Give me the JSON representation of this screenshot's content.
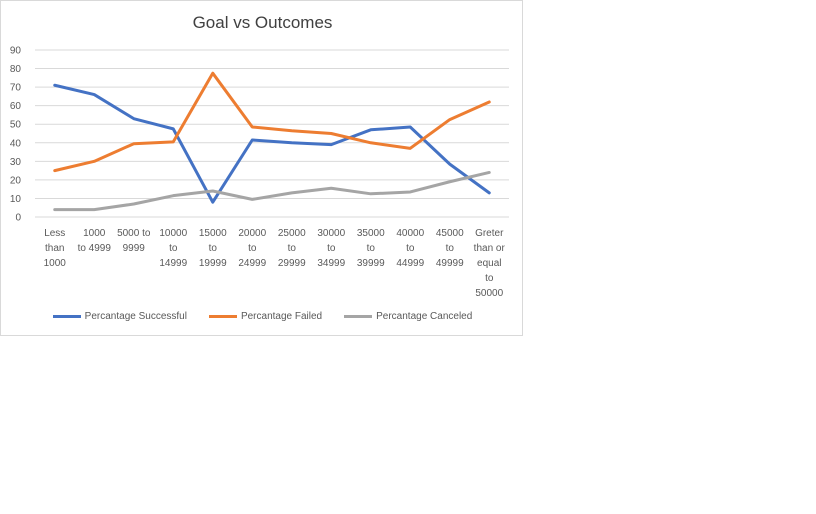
{
  "chart_data": {
    "type": "line",
    "title": "Goal vs Outcomes",
    "xlabel": "",
    "ylabel": "",
    "ylim": [
      0,
      90
    ],
    "yticks": [
      0,
      10,
      20,
      30,
      40,
      50,
      60,
      70,
      80,
      90
    ],
    "grid": true,
    "legend_position": "bottom",
    "categories": [
      "Less than 1000",
      "1000 to 4999",
      "5000 to 9999",
      "10000 to 14999",
      "15000 to 19999",
      "20000 to 24999",
      "25000 to 29999",
      "30000 to 34999",
      "35000 to 39999",
      "40000 to 44999",
      "45000 to 49999",
      "Greter than or equal to 50000"
    ],
    "category_lines": [
      [
        "Less",
        "than",
        "1000"
      ],
      [
        "1000",
        "to 4999"
      ],
      [
        "5000 to",
        "9999"
      ],
      [
        "10000",
        "to",
        "14999"
      ],
      [
        "15000",
        "to",
        "19999"
      ],
      [
        "20000",
        "to",
        "24999"
      ],
      [
        "25000",
        "to",
        "29999"
      ],
      [
        "30000",
        "to",
        "34999"
      ],
      [
        "35000",
        "to",
        "39999"
      ],
      [
        "40000",
        "to",
        "44999"
      ],
      [
        "45000",
        "to",
        "49999"
      ],
      [
        "Greter",
        "than or",
        "equal",
        "to",
        "50000"
      ]
    ],
    "series": [
      {
        "name": "Percantage Successful",
        "color": "#4472c4",
        "values": [
          71,
          66,
          53,
          47.5,
          8,
          41.5,
          40,
          39,
          47,
          48.5,
          28.5,
          13
        ]
      },
      {
        "name": "Percantage Failed",
        "color": "#ed7d31",
        "values": [
          25,
          30,
          39.5,
          40.5,
          77.5,
          48.5,
          46.5,
          45,
          40,
          37,
          52.5,
          62
        ]
      },
      {
        "name": "Percantage Canceled",
        "color": "#a5a5a5",
        "values": [
          4,
          4,
          7,
          11.5,
          14,
          9.5,
          13,
          15.5,
          12.5,
          13.5,
          19,
          24
        ]
      }
    ]
  }
}
